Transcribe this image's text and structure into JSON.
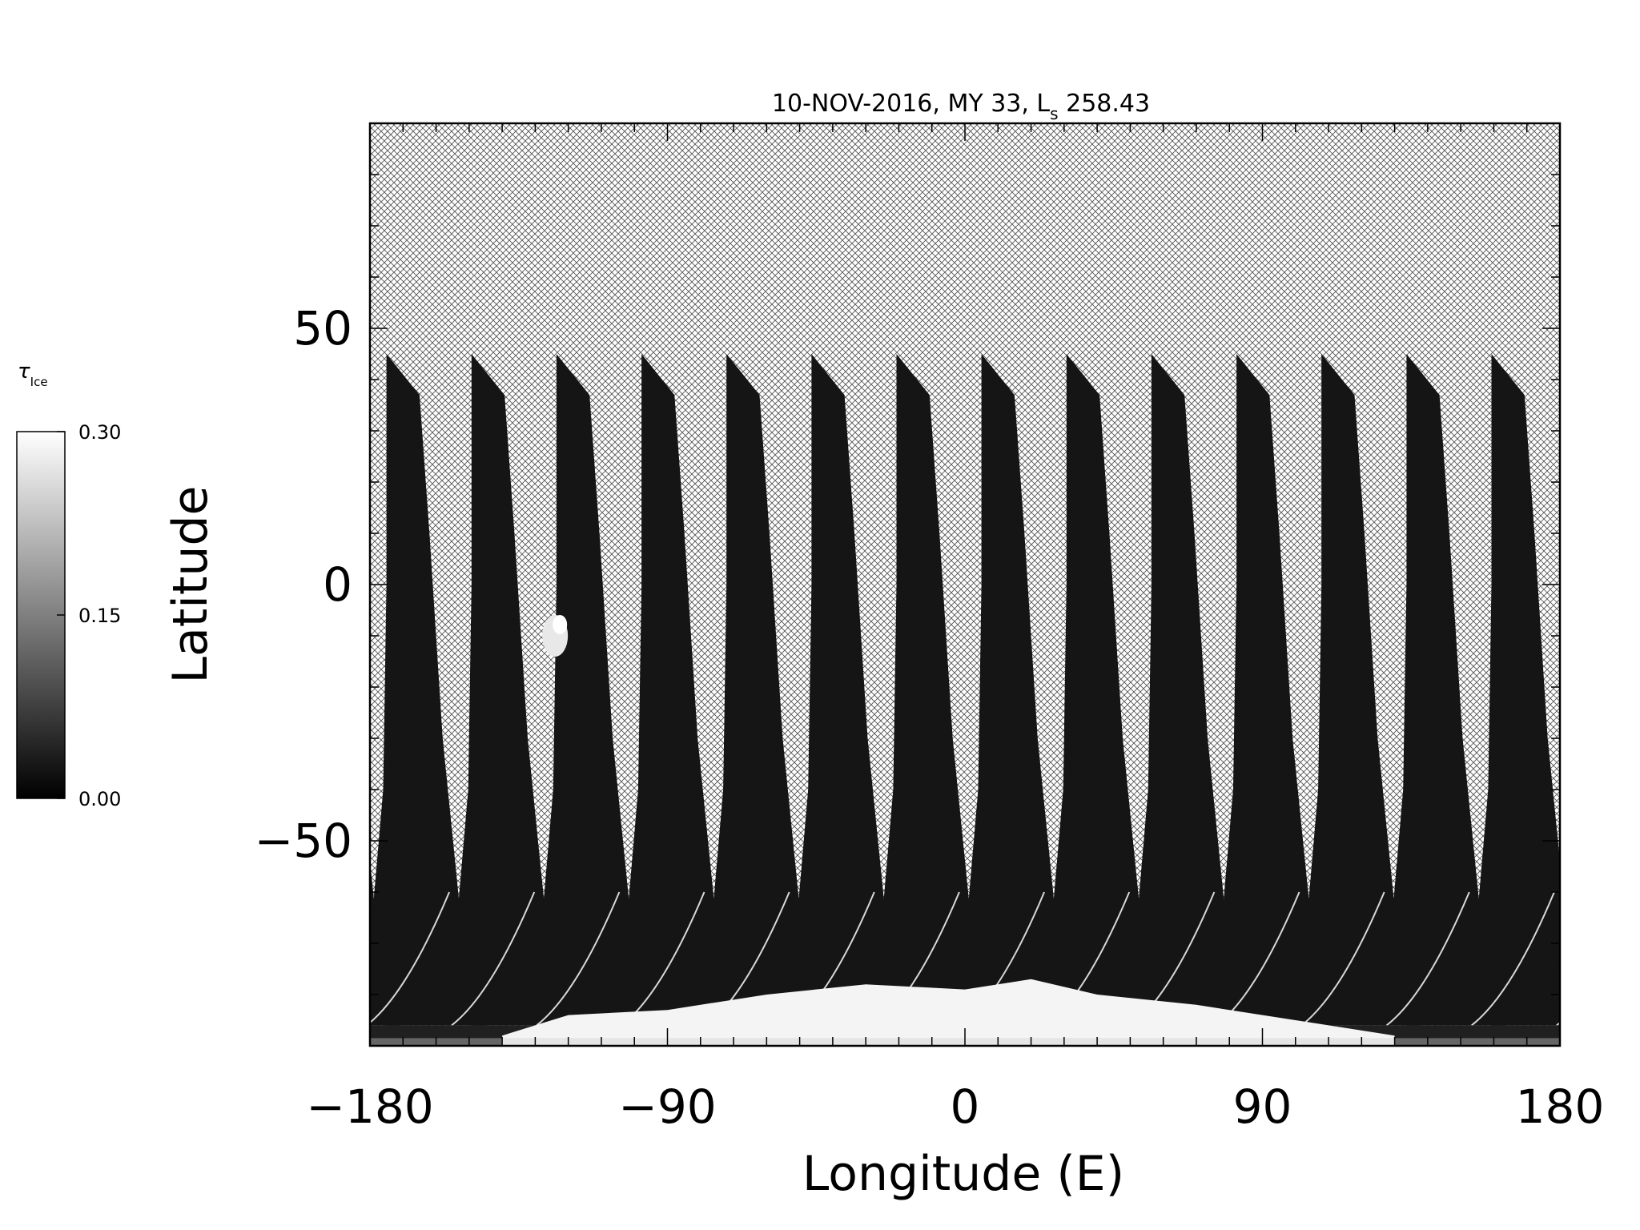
{
  "chart_data": {
    "type": "heatmap",
    "title": "10-NOV-2016, MY 33,  L",
    "title_sub": "s",
    "title_tail": " 258.43",
    "xlabel": "Longitude (E)",
    "ylabel": "Latitude",
    "xlim": [
      -180,
      180
    ],
    "ylim": [
      -90,
      90
    ],
    "xticks": [
      -180,
      -90,
      0,
      90,
      180
    ],
    "xtick_labels": [
      "−180",
      "−90",
      "0",
      "90",
      "180"
    ],
    "yticks": [
      -50,
      0,
      50
    ],
    "ytick_labels": [
      "−50",
      "0",
      "50"
    ],
    "no_data_fill": "crosshatch",
    "colormap": "grayscale",
    "swath_count": 14,
    "swath_top_latitude": 45,
    "bright_polar_cap_lat_below": -80,
    "bright_feature": {
      "lon": -124,
      "lat": -10
    },
    "colorbar": {
      "label": "τ",
      "label_sub": "Ice",
      "min": 0.0,
      "max": 0.3,
      "ticks": [
        0.0,
        0.15,
        0.3
      ],
      "tick_labels": [
        "0.00",
        "0.15",
        "0.30"
      ],
      "colors": [
        "#000000",
        "#ffffff"
      ]
    }
  }
}
